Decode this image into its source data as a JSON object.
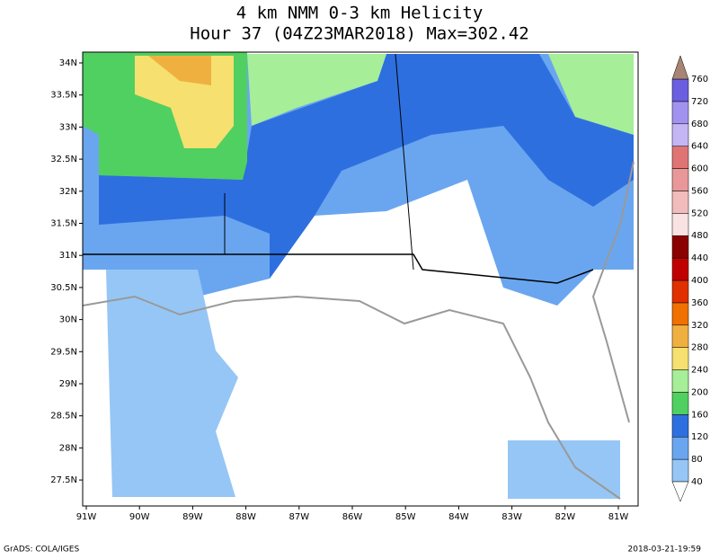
{
  "header": {
    "title": "4 km NMM 0-3 km Helicity",
    "subtitle": "Hour 37 (04Z23MAR2018) Max=302.42"
  },
  "lat_labels": [
    "34N",
    "33.5N",
    "33N",
    "32.5N",
    "32N",
    "31.5N",
    "31N",
    "30.5N",
    "30N",
    "29.5N",
    "29N",
    "28.5N",
    "28N",
    "27.5N"
  ],
  "lon_labels": [
    "91W",
    "90W",
    "89W",
    "88W",
    "87W",
    "86W",
    "85W",
    "84W",
    "83W",
    "82W",
    "81W"
  ],
  "colorbar": {
    "labels": [
      "40",
      "80",
      "120",
      "160",
      "200",
      "240",
      "280",
      "320",
      "360",
      "400",
      "440",
      "480",
      "520",
      "560",
      "600",
      "640",
      "680",
      "720",
      "760"
    ],
    "colors": [
      "#96c6f5",
      "#6aa6ef",
      "#2e6fe0",
      "#50d060",
      "#a6ee98",
      "#f5e070",
      "#f0b040",
      "#f07000",
      "#e03000",
      "#c00000",
      "#8b0000",
      "#f8e2e2",
      "#f2bcbc",
      "#e89898",
      "#e07474",
      "#c4b6f4",
      "#a292f0",
      "#6c5ee0"
    ],
    "below_color": "#ffffff",
    "above_color": "#a88472"
  },
  "footer": {
    "left": "GrADS: COLA/IGES",
    "right": "2018-03-21-19:59"
  }
}
